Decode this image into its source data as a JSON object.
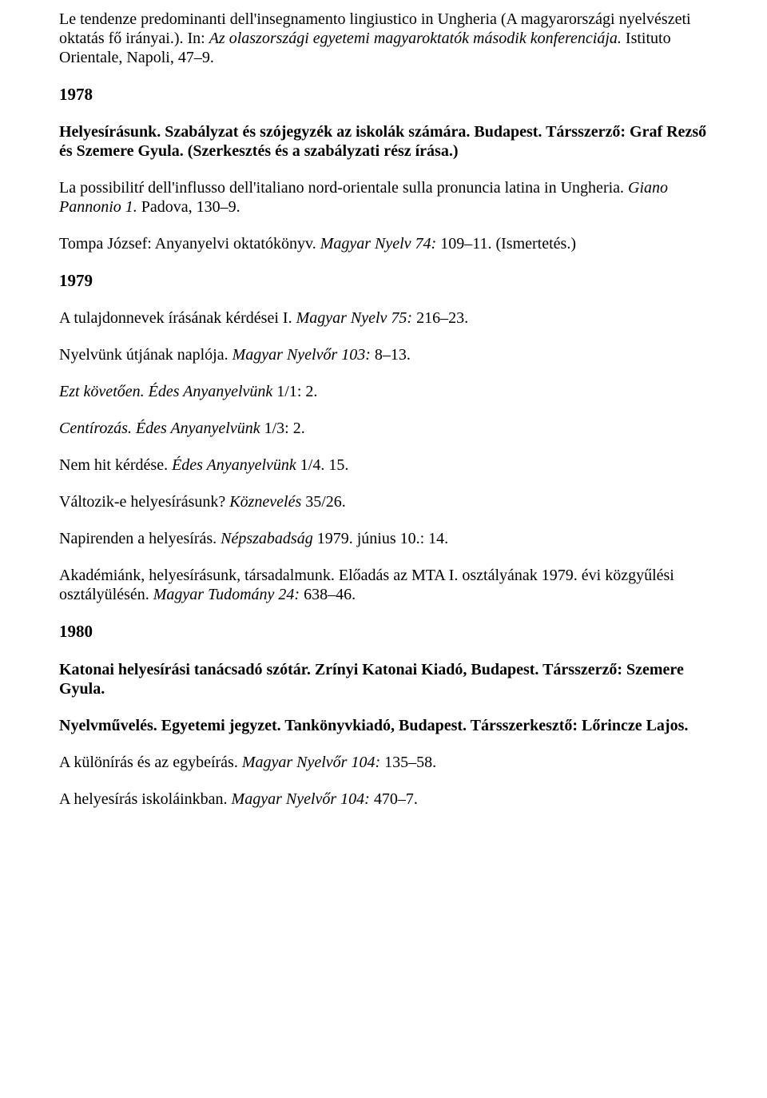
{
  "p1": {
    "a": "Le tendenze predominanti dell'insegnamento lingiustico in Ungheria (A magyarországi nyelvészeti oktatás fő irányai.). In: ",
    "b": "Az olaszországi egyetemi magyaroktatók második konferenciája.",
    "c": " Istituto Orientale, Napoli, 47–9."
  },
  "y1978": "1978",
  "p2": "Helyesírásunk. Szabályzat és szójegyzék az iskolák számára. Budapest. Társszerző: Graf Rezső és Szemere Gyula. (Szerkesztés és a szabályzati rész írása.)",
  "p3": {
    "a": "La possibilitŕ dell'influsso dell'italiano nord-orientale sulla pronuncia latina in Ungheria. ",
    "b": "Giano Pannonio 1.",
    "c": " Padova, 130–9."
  },
  "p4": {
    "a": "Tompa József: Anyanyelvi oktatókönyv. ",
    "b": "Magyar Nyelv 74:",
    "c": " 109–11. (Ismertetés.)"
  },
  "y1979": "1979",
  "p5": {
    "a": "A tulajdonnevek írásának kérdései I. ",
    "b": "Magyar Nyelv 75:",
    "c": " 216–23."
  },
  "p6": {
    "a": "Nyelvünk útjának naplója. ",
    "b": "Magyar Nyelvőr 103:",
    "c": " 8–13."
  },
  "p7": {
    "a": "Ezt követően. Édes Anyanyelvünk",
    "b": " 1/1: 2."
  },
  "p8": {
    "a": "Centírozás. Édes Anyanyelvünk",
    "b": " 1/3: 2."
  },
  "p9": {
    "a": "Nem hit kérdése. ",
    "b": "Édes Anyanyelvünk",
    "c": " 1/4. 15."
  },
  "p10": {
    "a": "Változik-e helyesírásunk? ",
    "b": "Köznevelés",
    "c": " 35/26."
  },
  "p11": {
    "a": "Napirenden a helyesírás. ",
    "b": "Népszabadság",
    "c": " 1979. június 10.: 14."
  },
  "p12": {
    "a": "Akadémiánk, helyesírásunk, társadalmunk. Előadás az MTA I. osztályának 1979. évi közgyűlési osztályülésén. ",
    "b": "Magyar Tudomány 24:",
    "c": " 638–46."
  },
  "y1980": "1980",
  "p13": "Katonai helyesírási tanácsadó szótár. Zrínyi Katonai Kiadó, Budapest. Társszerző: Szemere Gyula.",
  "p14": "Nyelvművelés. Egyetemi jegyzet. Tankönyvkiadó, Budapest. Társszerkesztő: Lőrincze Lajos.",
  "p15": {
    "a": "A különírás és az egybeírás. ",
    "b": "Magyar Nyelvőr 104:",
    "c": " 135–58."
  },
  "p16": {
    "a": "A helyesírás iskoláinkban. ",
    "b": "Magyar Nyelvőr 104:",
    "c": " 470–7."
  }
}
